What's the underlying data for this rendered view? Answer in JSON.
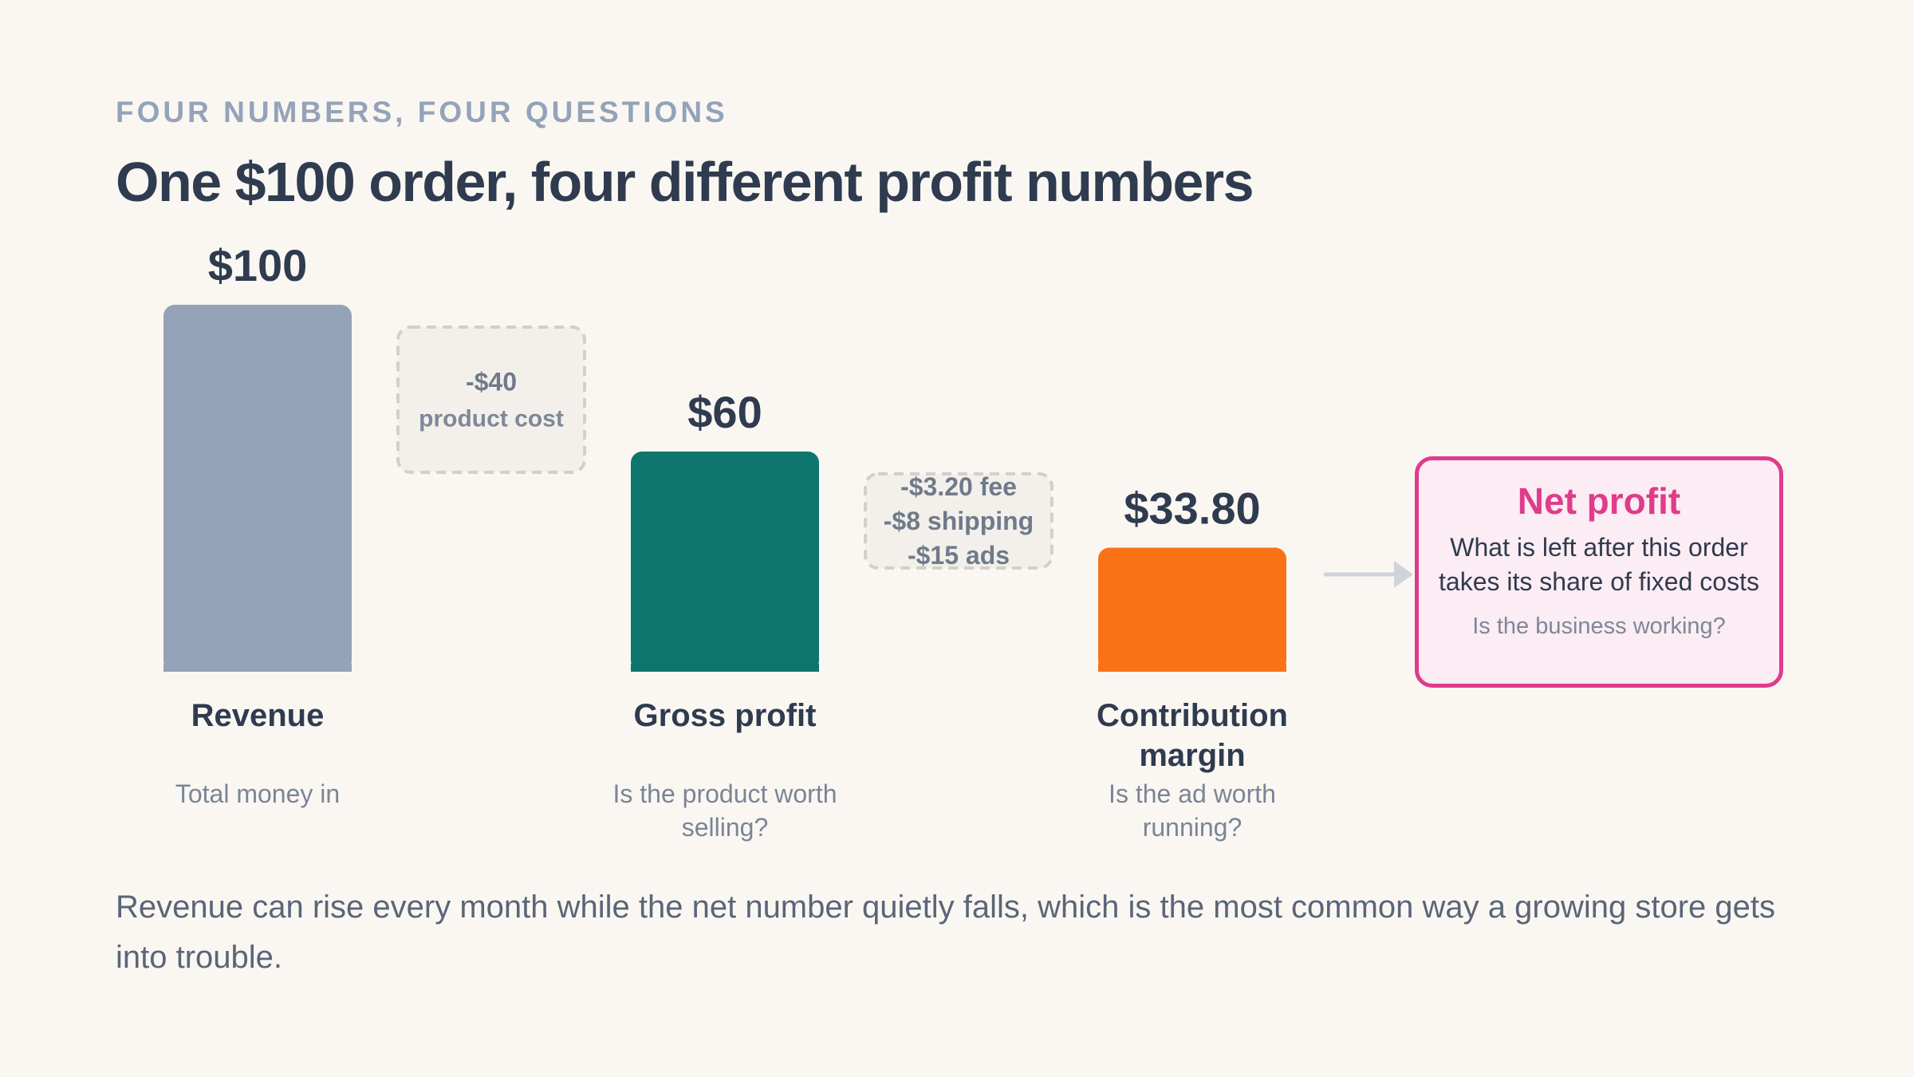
{
  "eyebrow": "FOUR NUMBERS, FOUR QUESTIONS",
  "title": "One $100 order, four different profit numbers",
  "colors": {
    "revenue": "#94a3b8",
    "gross_profit": "#0f766e",
    "contribution_margin": "#f97316",
    "net_profit": "#df3c8a",
    "deduction_fill": "#f3f0eb",
    "deduction_border": "#d4cfc8"
  },
  "chart_data": {
    "type": "bar",
    "categories": [
      "Revenue",
      "Gross profit",
      "Contribution\nmargin"
    ],
    "values": [
      100,
      60,
      33.8
    ],
    "value_labels": [
      "$100",
      "$60",
      "$33.80"
    ],
    "descriptions": [
      "Total money in",
      "Is the product worth\nselling?",
      "Is the ad worth\nrunning?"
    ],
    "deductions": [
      {
        "lines": [
          "-$40",
          "product cost"
        ]
      },
      {
        "lines": [
          "-$3.20 fee",
          "-$8 shipping",
          "-$15 ads"
        ]
      }
    ],
    "ylim": [
      0,
      100
    ]
  },
  "net_profit": {
    "title": "Net profit",
    "text": "What is left after this order takes its share of fixed costs",
    "question": "Is the business working?"
  },
  "footer": "Revenue can rise every month while the net number quietly falls, which is the most common way a growing store gets into trouble."
}
